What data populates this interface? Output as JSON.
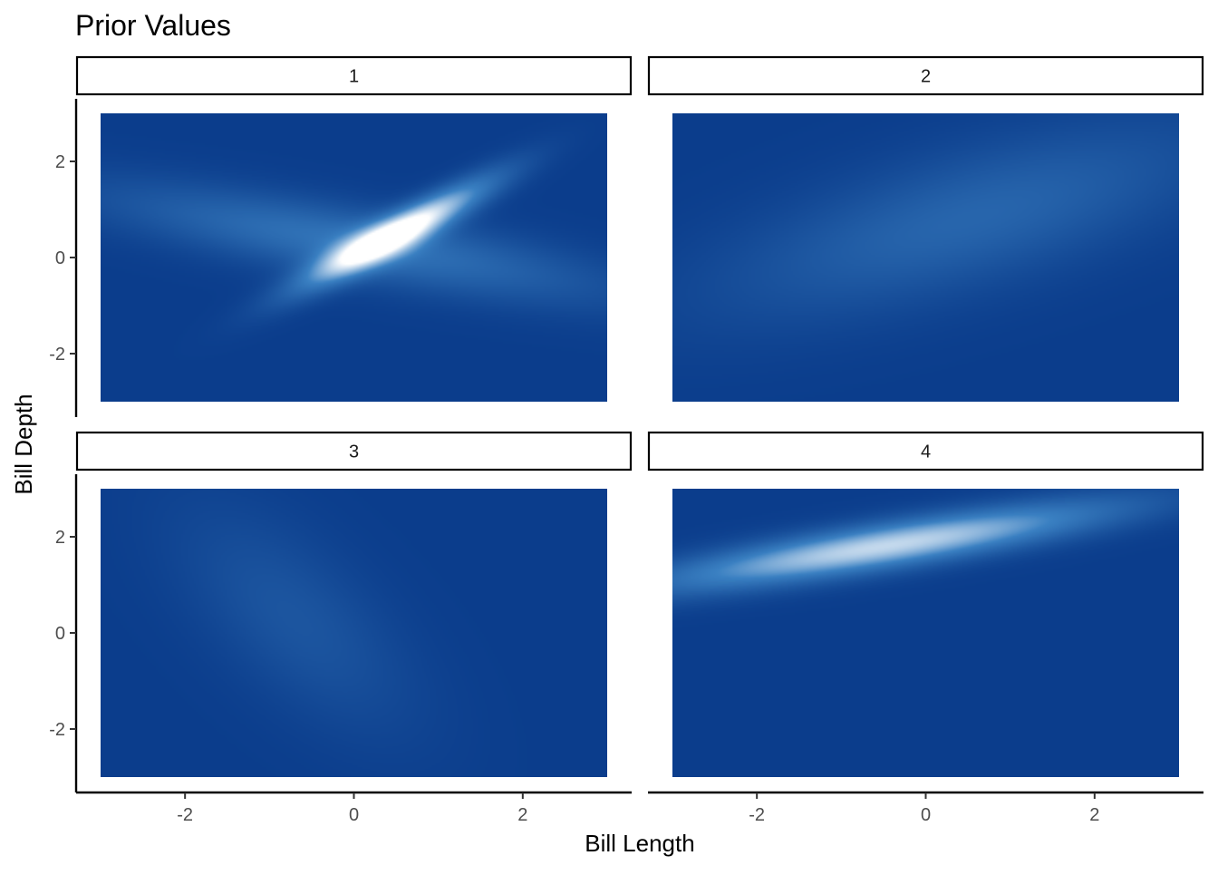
{
  "chart_data": {
    "type": "heatmap",
    "title": "Prior Values",
    "xlabel": "Bill Length",
    "ylabel": "Bill Depth",
    "facet_layout": "2x2",
    "xlim": [
      -3,
      3
    ],
    "ylim": [
      -3,
      3
    ],
    "x_ticks": [
      -2,
      0,
      2
    ],
    "y_ticks": [
      -2,
      0,
      2
    ],
    "x_tick_labels": [
      "-2",
      "0",
      "2"
    ],
    "y_tick_labels": [
      "-2",
      "0",
      "2"
    ],
    "colors": {
      "low": "#0b3d8c",
      "mid": "#3a80c2",
      "high": "#ffffff"
    },
    "facets": [
      {
        "label": "1",
        "components": [
          {
            "weight": 1.0,
            "mean": [
              0.5,
              0.5
            ],
            "sd_major": 1.1,
            "sd_minor": 0.22,
            "angle_deg": 45
          },
          {
            "weight": 0.4,
            "mean": [
              0.0,
              0.3
            ],
            "sd_major": 2.2,
            "sd_minor": 0.5,
            "angle_deg": -18
          }
        ]
      },
      {
        "label": "2",
        "components": [
          {
            "weight": 0.3,
            "mean": [
              0.5,
              0.8
            ],
            "sd_major": 2.3,
            "sd_minor": 0.9,
            "angle_deg": 30
          }
        ]
      },
      {
        "label": "3",
        "components": [
          {
            "weight": 0.18,
            "mean": [
              -0.7,
              0.3
            ],
            "sd_major": 1.8,
            "sd_minor": 0.7,
            "angle_deg": -65
          }
        ]
      },
      {
        "label": "4",
        "components": [
          {
            "weight": 0.85,
            "mean": [
              -0.5,
              1.8
            ],
            "sd_major": 2.0,
            "sd_minor": 0.33,
            "angle_deg": 16
          }
        ]
      }
    ]
  }
}
